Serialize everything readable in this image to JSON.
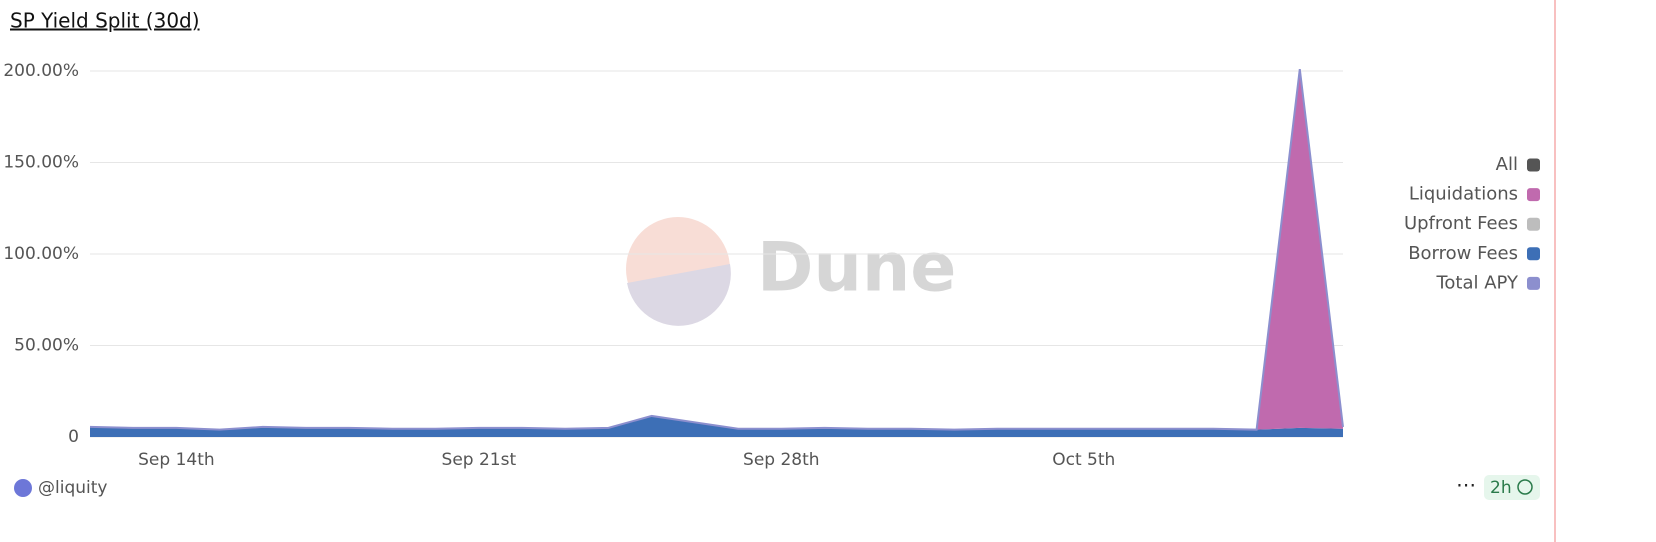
{
  "chart_data": {
    "type": "area",
    "title": "SP Yield Split (30d)",
    "watermark": "Dune",
    "author": "@liquity",
    "refresh": "2h",
    "legend_all": {
      "label": "All",
      "color": "#555555"
    },
    "categories": [
      null,
      null,
      "Sep 14th",
      null,
      null,
      null,
      null,
      null,
      null,
      "Sep 21st",
      null,
      null,
      null,
      null,
      null,
      null,
      "Sep 28th",
      null,
      null,
      null,
      null,
      null,
      null,
      "Oct 5th",
      null,
      null,
      null,
      null,
      null,
      null
    ],
    "series": [
      {
        "name": "Liquidations",
        "color": "#c06aae",
        "values": [
          0,
          0,
          0,
          0,
          0,
          0,
          0,
          0,
          0,
          0,
          0,
          0,
          0,
          0,
          0,
          0,
          0,
          0,
          0,
          0,
          0,
          0,
          0,
          0,
          0,
          0,
          0,
          0,
          196,
          1
        ]
      },
      {
        "name": "Upfront Fees",
        "color": "#bdbdbd",
        "values": [
          0,
          0,
          0,
          0,
          0,
          0,
          0,
          0,
          0,
          0,
          0,
          0,
          0,
          0,
          0,
          0,
          0,
          0,
          0,
          0,
          0,
          0,
          0,
          0,
          0,
          0,
          0,
          0,
          0,
          0
        ]
      },
      {
        "name": "Borrow Fees",
        "color": "#3d6fb6",
        "values": [
          5.5,
          5,
          5,
          4,
          5.5,
          5,
          5,
          4.5,
          4.5,
          5,
          5,
          4.5,
          5,
          11.5,
          8,
          4.5,
          4.5,
          5,
          4.5,
          4.5,
          4,
          4.5,
          4.5,
          4.5,
          4.5,
          4.5,
          4.5,
          4,
          5,
          4.5
        ]
      },
      {
        "name": "Total APY",
        "color": "#8c8fce",
        "values": [
          5.5,
          5,
          5,
          4,
          5.5,
          5,
          5,
          4.5,
          4.5,
          5,
          5,
          4.5,
          5,
          11.5,
          8,
          4.5,
          4.5,
          5,
          4.5,
          4.5,
          4,
          4.5,
          4.5,
          4.5,
          4.5,
          4.5,
          4.5,
          4,
          201,
          5.5
        ]
      }
    ],
    "stack": [
      "Borrow Fees",
      "Upfront Fees",
      "Liquidations"
    ],
    "line_series": "Total APY",
    "ylim": [
      0,
      200
    ],
    "yticks": [
      0,
      {
        "value": 50,
        "label": "50.00%"
      },
      {
        "value": 100,
        "label": "100.00%"
      },
      {
        "value": 150,
        "label": "150.00%"
      },
      {
        "value": 200,
        "label": "200.00%"
      }
    ],
    "grid": true
  }
}
